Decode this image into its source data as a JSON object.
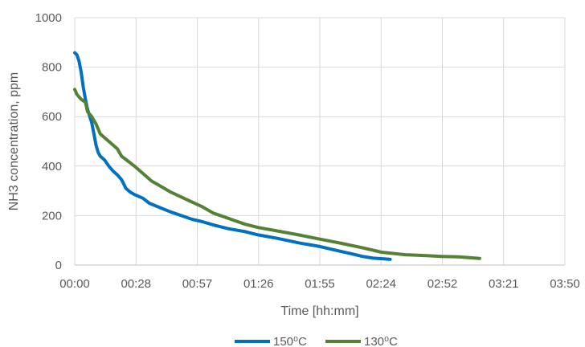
{
  "chart_data": {
    "type": "line",
    "title": "",
    "xlabel": "Time [hh:mm]",
    "ylabel": "NH3 concentration, ppm",
    "x_unit": "hh:mm",
    "xlim": [
      "00:00",
      "03:50"
    ],
    "ylim": [
      0,
      1000
    ],
    "x_ticks": [
      "00:00",
      "00:28",
      "00:57",
      "01:26",
      "01:55",
      "02:24",
      "02:52",
      "03:21",
      "03:50"
    ],
    "y_ticks": [
      0,
      200,
      400,
      600,
      800,
      1000
    ],
    "grid": true,
    "legend_position": "bottom",
    "series": [
      {
        "name": "150⁰C",
        "color": "#0070C0",
        "points": [
          [
            "00:00",
            858
          ],
          [
            "00:01",
            850
          ],
          [
            "00:02",
            825
          ],
          [
            "00:03",
            780
          ],
          [
            "00:04",
            720
          ],
          [
            "00:05",
            670
          ],
          [
            "00:06",
            630
          ],
          [
            "00:08",
            575
          ],
          [
            "00:09",
            530
          ],
          [
            "00:10",
            485
          ],
          [
            "00:11",
            455
          ],
          [
            "00:12",
            440
          ],
          [
            "00:14",
            425
          ],
          [
            "00:16",
            400
          ],
          [
            "00:18",
            380
          ],
          [
            "00:20",
            365
          ],
          [
            "00:22",
            345
          ],
          [
            "00:24",
            310
          ],
          [
            "00:26",
            295
          ],
          [
            "00:28",
            285
          ],
          [
            "00:32",
            270
          ],
          [
            "00:35",
            250
          ],
          [
            "00:40",
            232
          ],
          [
            "00:45",
            215
          ],
          [
            "00:50",
            200
          ],
          [
            "00:55",
            185
          ],
          [
            "01:00",
            175
          ],
          [
            "01:06",
            160
          ],
          [
            "01:12",
            147
          ],
          [
            "01:20",
            135
          ],
          [
            "01:26",
            122
          ],
          [
            "01:35",
            108
          ],
          [
            "01:45",
            90
          ],
          [
            "01:55",
            75
          ],
          [
            "02:05",
            55
          ],
          [
            "02:10",
            45
          ],
          [
            "02:15",
            35
          ],
          [
            "02:20",
            28
          ],
          [
            "02:25",
            25
          ],
          [
            "02:28",
            23
          ]
        ]
      },
      {
        "name": "130⁰C",
        "color": "#548235",
        "points": [
          [
            "00:00",
            710
          ],
          [
            "00:01",
            690
          ],
          [
            "00:02",
            680
          ],
          [
            "00:03",
            670
          ],
          [
            "00:05",
            658
          ],
          [
            "00:06",
            620
          ],
          [
            "00:08",
            600
          ],
          [
            "00:10",
            570
          ],
          [
            "00:12",
            530
          ],
          [
            "00:14",
            515
          ],
          [
            "00:16",
            500
          ],
          [
            "00:18",
            485
          ],
          [
            "00:20",
            470
          ],
          [
            "00:22",
            440
          ],
          [
            "00:25",
            420
          ],
          [
            "00:28",
            400
          ],
          [
            "00:32",
            370
          ],
          [
            "00:36",
            340
          ],
          [
            "00:40",
            320
          ],
          [
            "00:45",
            295
          ],
          [
            "00:50",
            275
          ],
          [
            "00:55",
            255
          ],
          [
            "01:00",
            235
          ],
          [
            "01:05",
            210
          ],
          [
            "01:10",
            195
          ],
          [
            "01:15",
            180
          ],
          [
            "01:20",
            165
          ],
          [
            "01:26",
            152
          ],
          [
            "01:35",
            138
          ],
          [
            "01:45",
            122
          ],
          [
            "01:55",
            105
          ],
          [
            "02:05",
            88
          ],
          [
            "02:15",
            70
          ],
          [
            "02:24",
            52
          ],
          [
            "02:35",
            42
          ],
          [
            "02:45",
            38
          ],
          [
            "02:52",
            35
          ],
          [
            "03:00",
            33
          ],
          [
            "03:05",
            30
          ],
          [
            "03:10",
            27
          ]
        ]
      }
    ]
  }
}
